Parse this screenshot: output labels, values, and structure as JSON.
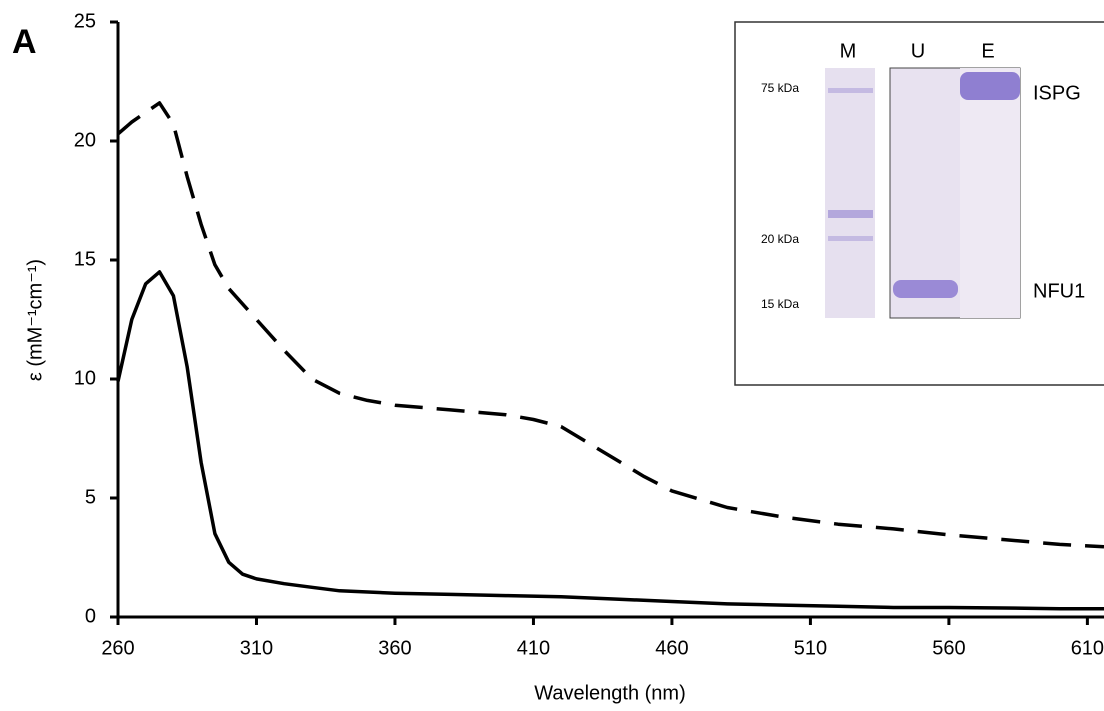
{
  "chart_data": {
    "type": "line",
    "panel_label": "A",
    "x_label": "Wavelength (nm)",
    "y_label": "ε (mM⁻¹cm⁻¹)",
    "xlim": [
      260,
      616
    ],
    "xticks": [
      260,
      310,
      360,
      410,
      460,
      510,
      560,
      610
    ],
    "ylim": [
      0,
      25
    ],
    "yticks": [
      0,
      5,
      10,
      15,
      20,
      25
    ],
    "grid": false,
    "series": [
      {
        "color": "#000000",
        "line_style": "solid",
        "x": [
          260,
          265,
          270,
          275,
          280,
          285,
          290,
          295,
          300,
          305,
          310,
          320,
          330,
          340,
          360,
          380,
          400,
          420,
          440,
          460,
          480,
          500,
          520,
          540,
          560,
          580,
          600,
          616
        ],
        "values": [
          9.9,
          12.5,
          14.0,
          14.5,
          13.5,
          10.5,
          6.5,
          3.5,
          2.3,
          1.8,
          1.6,
          1.4,
          1.25,
          1.1,
          1.0,
          0.95,
          0.9,
          0.85,
          0.75,
          0.65,
          0.55,
          0.5,
          0.45,
          0.4,
          0.4,
          0.38,
          0.35,
          0.35
        ]
      },
      {
        "color": "#000000",
        "line_style": "dashed",
        "x": [
          260,
          265,
          270,
          275,
          280,
          285,
          290,
          295,
          300,
          310,
          320,
          330,
          340,
          350,
          360,
          380,
          400,
          410,
          420,
          430,
          440,
          450,
          460,
          480,
          500,
          520,
          540,
          560,
          580,
          600,
          616
        ],
        "values": [
          20.3,
          20.8,
          21.2,
          21.6,
          20.7,
          18.5,
          16.5,
          14.8,
          13.8,
          12.5,
          11.2,
          10.0,
          9.4,
          9.1,
          8.9,
          8.7,
          8.5,
          8.3,
          8.0,
          7.3,
          6.6,
          5.9,
          5.3,
          4.6,
          4.2,
          3.9,
          3.7,
          3.45,
          3.25,
          3.05,
          2.95
        ]
      }
    ],
    "inset": {
      "lanes": [
        "M",
        "U",
        "E"
      ],
      "markers": [
        "75 kDa",
        "20 kDa",
        "15 kDa"
      ],
      "bands": [
        "ISPG",
        "NFU1"
      ]
    }
  }
}
